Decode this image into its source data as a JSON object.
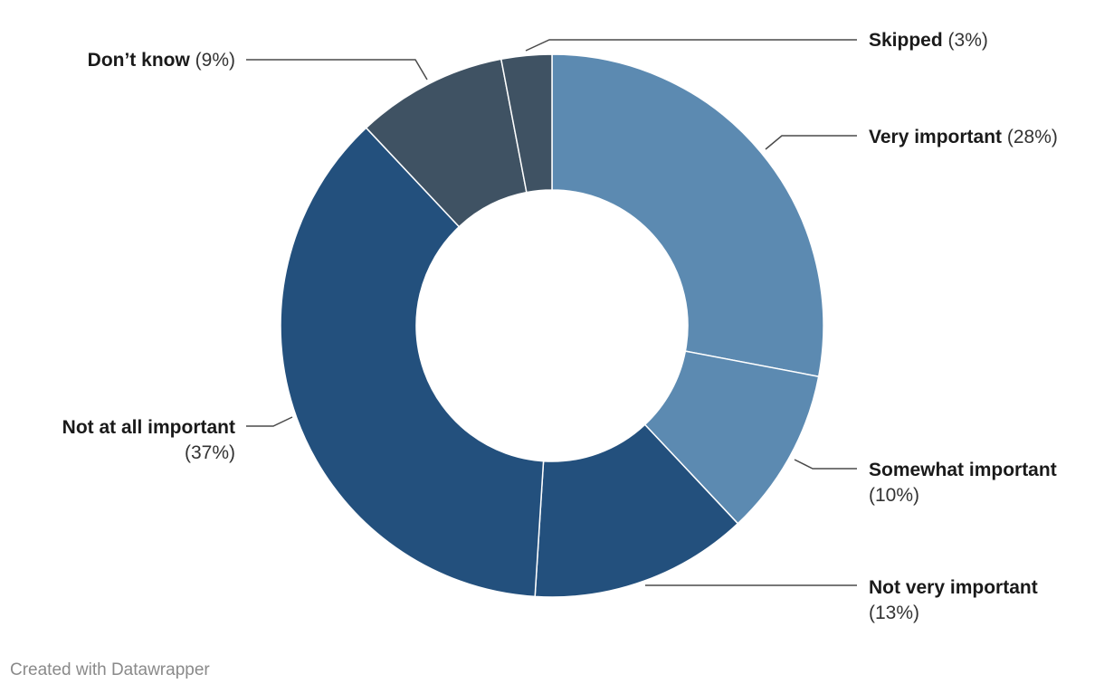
{
  "chart_data": {
    "type": "pie",
    "donut": true,
    "slices": [
      {
        "label": "Very important",
        "value": 28,
        "percent_label": "(28%)",
        "color": "#5c8ab1"
      },
      {
        "label": "Somewhat important",
        "value": 10,
        "percent_label": "(10%)",
        "color": "#5c8ab1"
      },
      {
        "label": "Not very important",
        "value": 13,
        "percent_label": "(13%)",
        "color": "#23507d"
      },
      {
        "label": "Not at all important",
        "value": 37,
        "percent_label": "(37%)",
        "color": "#23507d"
      },
      {
        "label": "Don’t know",
        "value": 9,
        "percent_label": "(9%)",
        "color": "#3f5263"
      },
      {
        "label": "Skipped",
        "value": 3,
        "percent_label": "(3%)",
        "color": "#3f5263"
      }
    ]
  },
  "footer": {
    "credit": "Created with Datawrapper"
  }
}
